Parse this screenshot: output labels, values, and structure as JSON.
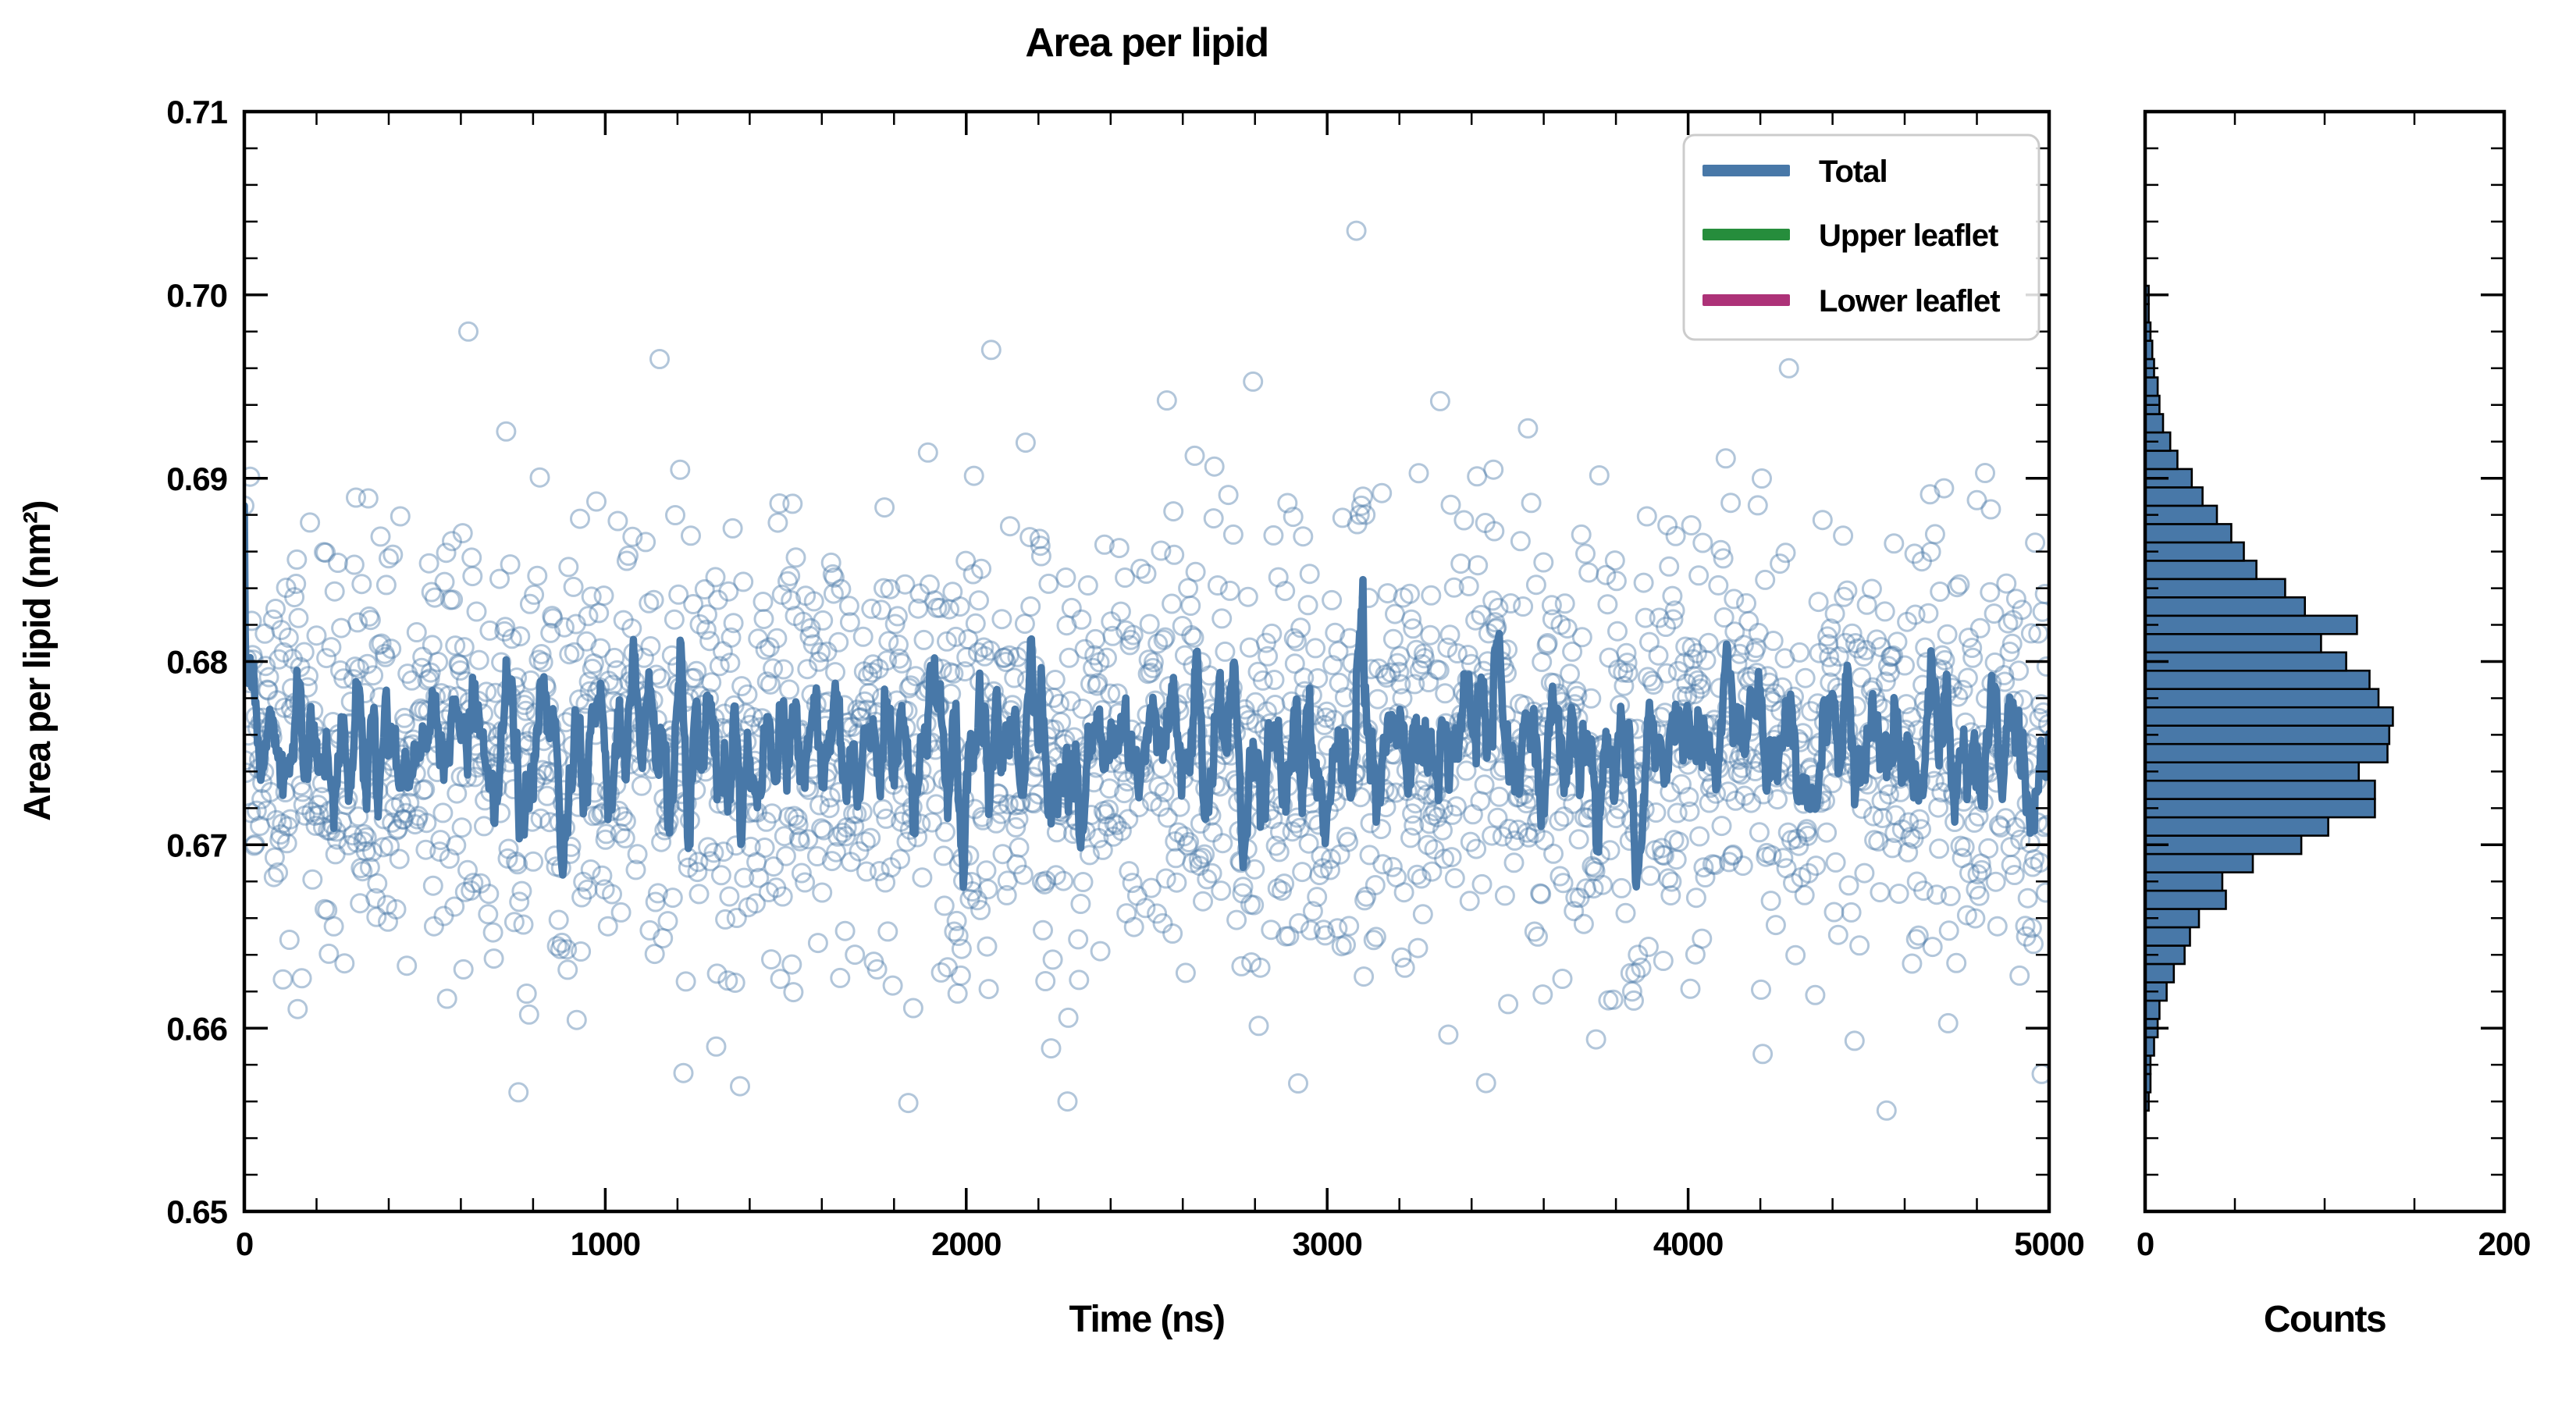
{
  "title": "Area per lipid",
  "colors": {
    "total": "#4878a8",
    "upper_leaflet": "#268d3c",
    "lower_leaflet": "#ad3278",
    "hist_fill": "#4878a8",
    "hist_edge": "#000000",
    "axis": "#000000",
    "legend_border": "#cccccc"
  },
  "main_plot": {
    "xlabel": "Time (ns)",
    "ylabel": "Area per lipid (nm²)",
    "x_tick_labels": [
      "0",
      "1000",
      "2000",
      "3000",
      "4000",
      "5000"
    ],
    "y_tick_labels": [
      "0.65",
      "0.66",
      "0.67",
      "0.68",
      "0.69",
      "0.70",
      "0.71"
    ]
  },
  "hist_plot": {
    "xlabel": "Counts",
    "x_tick_labels": [
      "0",
      "200"
    ]
  },
  "legend": {
    "items": [
      {
        "label": "Total",
        "color": "#4878a8"
      },
      {
        "label": "Upper leaflet",
        "color": "#268d3c"
      },
      {
        "label": "Lower leaflet",
        "color": "#ad3278"
      }
    ]
  },
  "chart_data": [
    {
      "type": "scatter",
      "title": "Area per lipid",
      "xlabel": "Time (ns)",
      "ylabel": "Area per lipid (nm²)",
      "xlim": [
        0,
        5000
      ],
      "ylim": [
        0.65,
        0.71
      ],
      "x_major_ticks": [
        0,
        1000,
        2000,
        3000,
        4000,
        5000
      ],
      "x_minor_step": 200,
      "y_major_ticks": [
        0.65,
        0.66,
        0.67,
        0.68,
        0.69,
        0.7,
        0.71
      ],
      "y_minor_step": 0.002,
      "grid": false,
      "legend_position": "upper right",
      "tick_direction": "in",
      "series": [
        {
          "name": "Total",
          "color": "#4878a8",
          "style": "open-circle scatter of per-frame values plus thick rolling-mean line",
          "n_points": 2200,
          "mean": 0.6755,
          "sd": 0.006,
          "rolling_window": 9,
          "seed": 20240521,
          "marker_alpha": 0.42,
          "outliers": [
            [
              0,
              0.6885
            ],
            [
              620,
              0.698
            ],
            [
              760,
              0.6565
            ],
            [
              1150,
              0.6965
            ],
            [
              2070,
              0.697
            ],
            [
              2280,
              0.656
            ],
            [
              3080,
              0.7035
            ],
            [
              3090,
              0.688
            ],
            [
              3095,
              0.6885
            ],
            [
              3100,
              0.689
            ],
            [
              3105,
              0.688
            ],
            [
              3440,
              0.657
            ],
            [
              3840,
              0.663
            ],
            [
              3845,
              0.662
            ],
            [
              3850,
              0.6615
            ],
            [
              3855,
              0.663
            ],
            [
              3860,
              0.664
            ],
            [
              4280,
              0.696
            ],
            [
              4550,
              0.6555
            ],
            [
              4980,
              0.6575
            ]
          ],
          "line_range_observed": [
            0.6655,
            0.684
          ],
          "scatter_range_observed": [
            0.6555,
            0.7035
          ]
        },
        {
          "name": "Upper leaflet",
          "color": "#268d3c",
          "visible_in_plot": false
        },
        {
          "name": "Lower leaflet",
          "color": "#ad3278",
          "visible_in_plot": false
        }
      ]
    },
    {
      "type": "bar",
      "orientation": "horizontal",
      "xlabel": "Counts",
      "ylabel": "",
      "xlim": [
        0,
        200
      ],
      "x_major_ticks": [
        0,
        200
      ],
      "x_minor_ticks": [
        50,
        100,
        150
      ],
      "ylim": [
        0.65,
        0.71
      ],
      "bin_width": 0.001,
      "color": "#4878a8",
      "edge_color": "#000000",
      "bin_centers": [
        0.656,
        0.657,
        0.658,
        0.659,
        0.66,
        0.661,
        0.662,
        0.663,
        0.664,
        0.665,
        0.666,
        0.667,
        0.668,
        0.669,
        0.67,
        0.671,
        0.672,
        0.673,
        0.674,
        0.675,
        0.676,
        0.677,
        0.678,
        0.679,
        0.68,
        0.681,
        0.682,
        0.683,
        0.684,
        0.685,
        0.686,
        0.687,
        0.688,
        0.689,
        0.69,
        0.691,
        0.692,
        0.693,
        0.694,
        0.695,
        0.696,
        0.697,
        0.698,
        0.699,
        0.7
      ],
      "counts": [
        2,
        3,
        3,
        5,
        7,
        8,
        12,
        16,
        22,
        25,
        30,
        45,
        43,
        60,
        87,
        102,
        128,
        128,
        119,
        135,
        136,
        138,
        130,
        125,
        112,
        98,
        118,
        89,
        78,
        62,
        55,
        48,
        40,
        32,
        26,
        18,
        14,
        10,
        8,
        7,
        5,
        4,
        3,
        2,
        2
      ]
    }
  ]
}
